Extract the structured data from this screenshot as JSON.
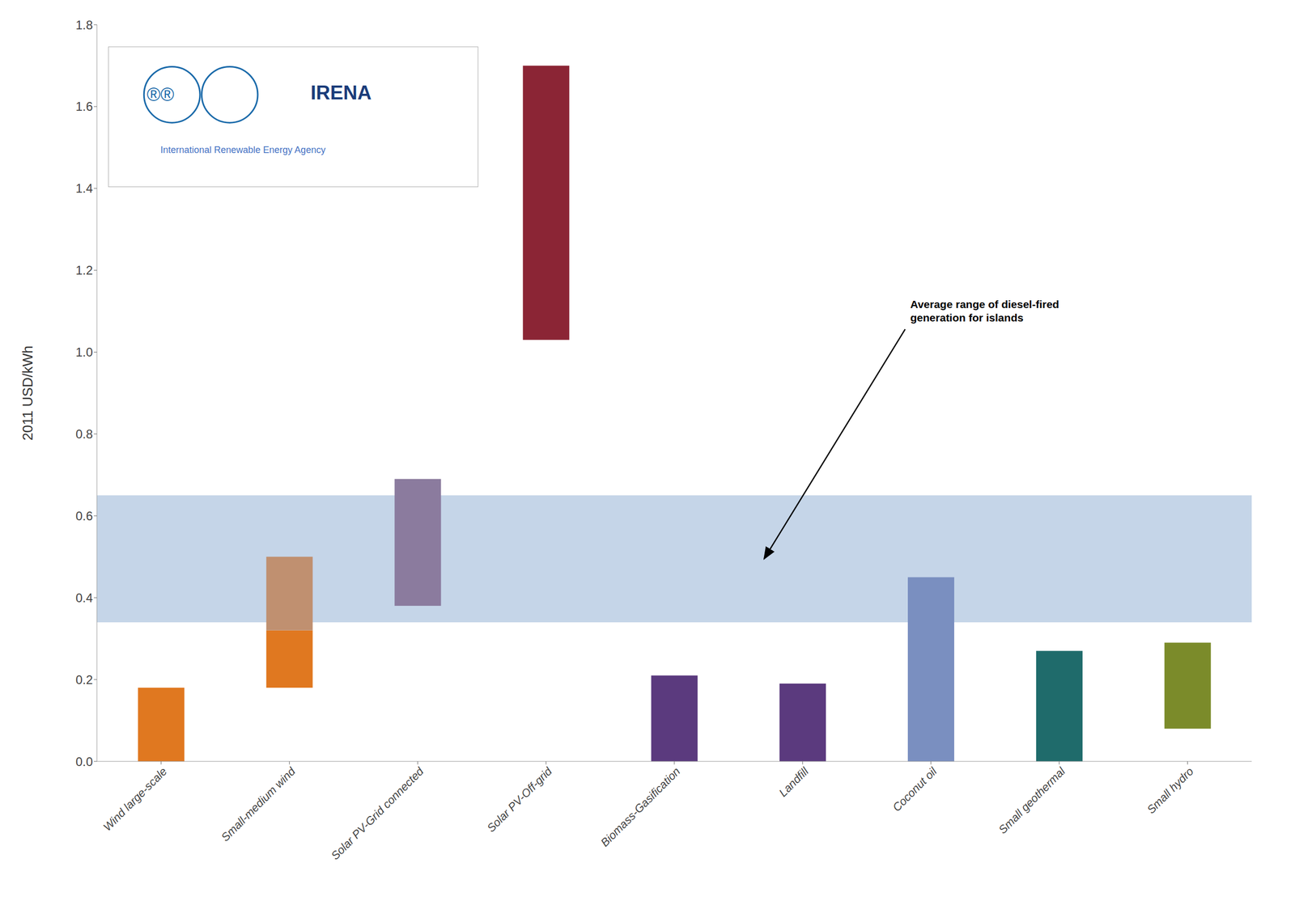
{
  "chart_data": {
    "type": "bar",
    "categories": [
      "Wind large-scale",
      "Small-medium wind",
      "Solar PV-Grid connected",
      "Solar PV-Off-grid",
      "Biomass-Gasification",
      "Landfill",
      "Coconut oil",
      "Small geothermal",
      "Small hydro"
    ],
    "segments": [
      [
        {
          "bottom": 0.0,
          "height": 0.18,
          "color": "#E07820"
        }
      ],
      [
        {
          "bottom": 0.18,
          "height": 0.14,
          "color": "#E07820"
        },
        {
          "bottom": 0.32,
          "height": 0.18,
          "color": "#C09070"
        }
      ],
      [
        {
          "bottom": 0.38,
          "height": 0.31,
          "color": "#8B7B9E"
        }
      ],
      [
        {
          "bottom": 1.03,
          "height": 0.67,
          "color": "#8B2535"
        }
      ],
      [
        {
          "bottom": 0.0,
          "height": 0.21,
          "color": "#5B3A7E"
        }
      ],
      [
        {
          "bottom": 0.0,
          "height": 0.19,
          "color": "#5B3A7E"
        }
      ],
      [
        {
          "bottom": 0.0,
          "height": 0.45,
          "color": "#7A8FC0"
        }
      ],
      [
        {
          "bottom": 0.0,
          "height": 0.27,
          "color": "#1F6B6B"
        }
      ],
      [
        {
          "bottom": 0.08,
          "height": 0.21,
          "color": "#7B8B2A"
        }
      ]
    ],
    "band": {
      "low": 0.34,
      "high": 0.65,
      "color": "#C5D5E8"
    },
    "annotation": "Average range of diesel-fired\ngeneration for islands",
    "logo_texts": [
      "®®",
      "IRENA",
      "International Renewable Energy Agency"
    ],
    "ylabel": "2011 USD/kWh",
    "ylim": [
      0,
      1.8
    ],
    "yticks": [
      {
        "value": 0,
        "label": "0.0"
      },
      0.2,
      0.4,
      0.6,
      0.8,
      {
        "value": 1.0,
        "label": "1.0"
      },
      1.2,
      1.4,
      1.6,
      1.8
    ],
    "grid": false
  }
}
